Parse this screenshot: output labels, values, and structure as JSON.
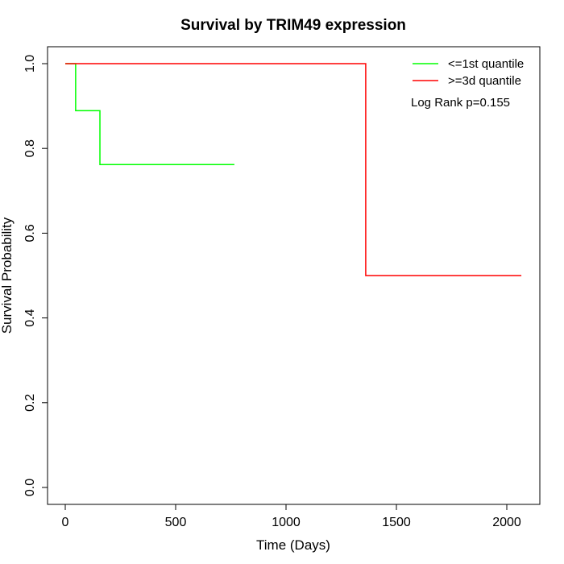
{
  "chart_data": {
    "type": "line",
    "step": true,
    "title": "Survival by TRIM49 expression",
    "xlabel": "Time (Days)",
    "ylabel": "Survival Probability",
    "xlim": [
      -80,
      2150
    ],
    "ylim": [
      -0.04,
      1.04
    ],
    "xticks": [
      0,
      500,
      1000,
      1500,
      2000
    ],
    "xtick_labels": [
      "0",
      "500",
      "1000",
      "1500",
      "2000"
    ],
    "yticks": [
      0,
      0.2,
      0.4,
      0.6,
      0.8,
      1.0
    ],
    "ytick_labels": [
      "0.0",
      "0.2",
      "0.4",
      "0.6",
      "0.8",
      "1.0"
    ],
    "grid": false,
    "legend_position": "top-right",
    "annotation": "Log Rank p=0.155",
    "series": [
      {
        "name": "<=1st quantile",
        "color": "#00ff00",
        "x": [
          0,
          47,
          157,
          766
        ],
        "y": [
          1.0,
          0.889,
          0.762,
          0.762
        ]
      },
      {
        "name": ">=3d quantile",
        "color": "#ff0000",
        "x": [
          0,
          1361,
          2066
        ],
        "y": [
          1.0,
          0.5,
          0.5
        ]
      }
    ]
  }
}
